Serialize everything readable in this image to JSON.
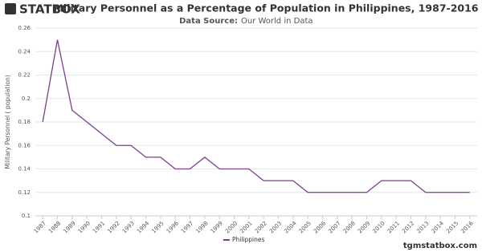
{
  "logo": "STATBOX",
  "footer": "tgmstatbox.com",
  "chart_data": {
    "type": "line",
    "title": "Military Personnel as a Percentage of Population in Philippines, 1987-2016",
    "source_label": "Data Source:",
    "source": "Our World in Data",
    "y_label": "Military Personnel ( population)",
    "categories": [
      "1987",
      "1988",
      "1989",
      "1990",
      "1991",
      "1992",
      "1993",
      "1994",
      "1995",
      "1996",
      "1997",
      "1998",
      "1999",
      "2000",
      "2001",
      "2002",
      "2003",
      "2004",
      "2005",
      "2006",
      "2007",
      "2008",
      "2009",
      "2010",
      "2011",
      "2012",
      "2013",
      "2014",
      "2015",
      "2016"
    ],
    "series": [
      {
        "name": "Philippines",
        "color": "#7b3f8c",
        "values": [
          0.18,
          0.25,
          0.19,
          0.18,
          0.17,
          0.16,
          0.16,
          0.15,
          0.15,
          0.14,
          0.14,
          0.15,
          0.14,
          0.14,
          0.14,
          0.13,
          0.13,
          0.13,
          0.12,
          0.12,
          0.12,
          0.12,
          0.12,
          0.13,
          0.13,
          0.13,
          0.12,
          0.12,
          0.12,
          0.12
        ]
      }
    ],
    "ylim": [
      0.1,
      0.26
    ],
    "yticks": [
      0.1,
      0.12,
      0.14,
      0.16,
      0.18,
      0.2,
      0.22,
      0.24,
      0.26
    ],
    "grid": true
  }
}
